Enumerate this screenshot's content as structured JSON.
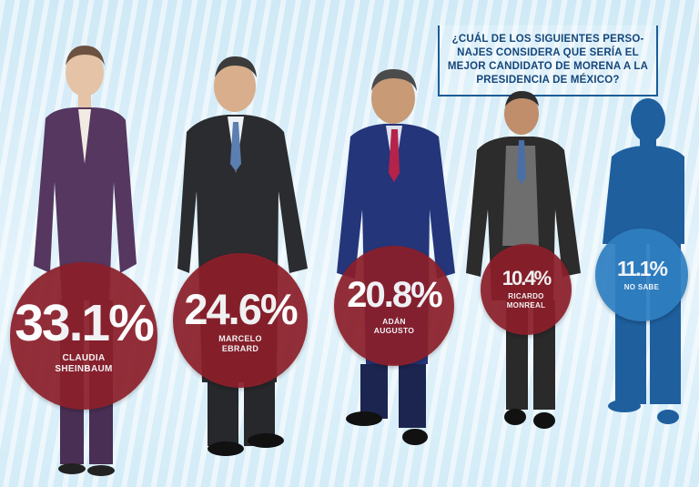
{
  "question": "¿CUÁL DE LOS SIGUIENTES PERSO­NAJES CONSIDERA QUE SERÍA EL MEJOR CANDIDATO DE MORENA A LA PRESIDENCIA DE MÉXICO?",
  "colors": {
    "bubble_red": "#8b1f2a",
    "bubble_blue": "#2f7fc1",
    "silhouette": "#1f5f9e",
    "frame": "#1d5c94"
  },
  "chart_data": {
    "type": "bar",
    "title": "¿CUÁL DE LOS SIGUIENTES PERSO­NAJES CONSIDERA QUE SERÍA EL MEJOR CANDIDATO DE MORENA A LA PRESIDENCIA DE MÉXICO?",
    "categories": [
      "CLAUDIA SHEINBAUM",
      "MARCELO EBRARD",
      "ADÁN AUGUSTO",
      "RICARDO MONREAL",
      "NO SABE"
    ],
    "values": [
      33.1,
      24.6,
      20.8,
      10.4,
      11.1
    ],
    "labels": [
      "33.1%",
      "24.6%",
      "20.8%",
      "10.4%",
      "11.1%"
    ],
    "name_lines": [
      [
        "CLAUDIA",
        "SHEINBAUM"
      ],
      [
        "MARCELO",
        "EBRARD"
      ],
      [
        "ADÁN",
        "AUGUSTO"
      ],
      [
        "RICARDO",
        "MONREAL"
      ],
      [
        "NO SABE"
      ]
    ],
    "unit": "%"
  }
}
